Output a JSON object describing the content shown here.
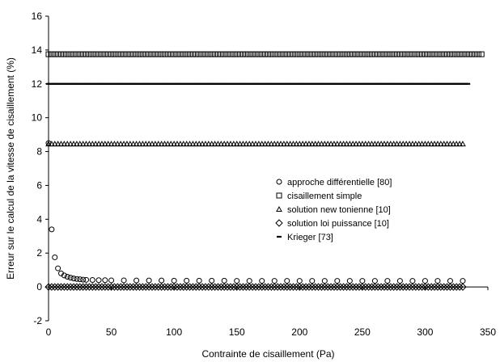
{
  "chart_data": {
    "type": "scatter",
    "xlabel": "Contrainte de cisaillement (Pa)",
    "ylabel": "Erreur sur le calcul de la vitesse de cisaillement (%)",
    "xlim": [
      0,
      350
    ],
    "ylim": [
      -2,
      16
    ],
    "xticks": [
      0,
      50,
      100,
      150,
      200,
      250,
      300,
      350
    ],
    "yticks": [
      -2,
      0,
      2,
      4,
      6,
      8,
      10,
      12,
      14,
      16
    ],
    "grid": false,
    "legend_position": "center-right",
    "series": [
      {
        "name": "approche différentielle [80]",
        "marker": "circle",
        "x": [
          0,
          2.5,
          5,
          7.5,
          10,
          12.5,
          15,
          17.5,
          20,
          22.5,
          25,
          27.5,
          30,
          35,
          40,
          45,
          50,
          60,
          70,
          80,
          90,
          100,
          110,
          120,
          130,
          140,
          150,
          160,
          170,
          180,
          190,
          200,
          210,
          220,
          230,
          240,
          250,
          260,
          270,
          280,
          290,
          300,
          310,
          320,
          330
        ],
        "y": [
          8.5,
          3.4,
          1.75,
          1.1,
          0.8,
          0.68,
          0.6,
          0.55,
          0.5,
          0.47,
          0.45,
          0.43,
          0.42,
          0.41,
          0.4,
          0.4,
          0.39,
          0.39,
          0.38,
          0.38,
          0.38,
          0.37,
          0.37,
          0.37,
          0.37,
          0.37,
          0.36,
          0.36,
          0.36,
          0.36,
          0.36,
          0.36,
          0.36,
          0.36,
          0.36,
          0.36,
          0.36,
          0.36,
          0.36,
          0.36,
          0.36,
          0.36,
          0.36,
          0.36,
          0.36
        ]
      },
      {
        "name": "cisaillement simple",
        "marker": "square",
        "x_range": [
          0,
          345
        ],
        "x_step": 2.5,
        "y_const": 13.75
      },
      {
        "name": "solution new tonienne [10]",
        "marker": "triangle",
        "x_range": [
          0,
          332
        ],
        "x_step": 2.5,
        "y_const": 8.45
      },
      {
        "name": "solution loi puissance [10]",
        "marker": "diamond",
        "x_range": [
          0,
          332
        ],
        "x_step": 2.5,
        "y_const": 0
      },
      {
        "name": "Krieger [73]",
        "marker": "dash",
        "x_range": [
          0,
          335
        ],
        "x_step": 2,
        "y_const": 12
      }
    ]
  }
}
